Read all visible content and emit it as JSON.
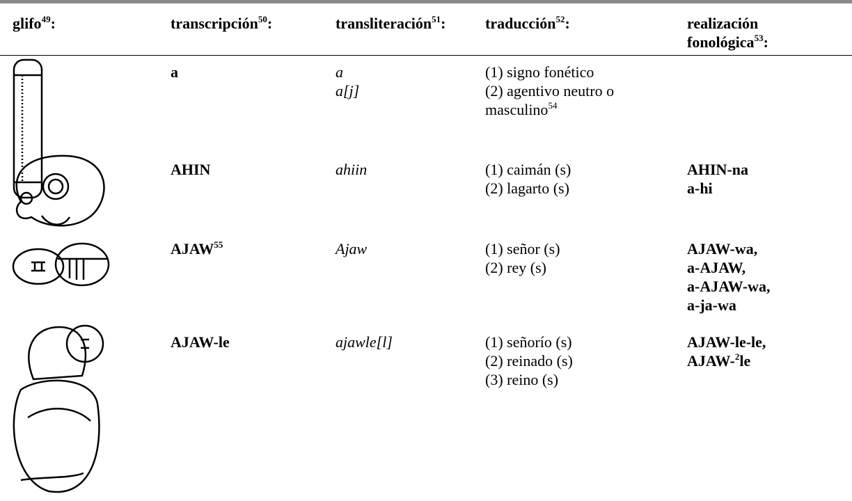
{
  "table": {
    "headers": [
      {
        "text": "glifo",
        "note": "49",
        "after": ":"
      },
      {
        "text": "transcripción",
        "note": "50",
        "after": ":"
      },
      {
        "text": "transliteración",
        "note": "51",
        "after": ":"
      },
      {
        "text": "traducción",
        "note": "52",
        "after": ":"
      },
      {
        "text": "realización fonológica",
        "note": "53",
        "after": ":"
      }
    ],
    "rows": [
      {
        "transcription": {
          "text": "a"
        },
        "transliteration": [
          "a",
          "a[j]"
        ],
        "translation": [
          {
            "text": "(1) signo fonético"
          },
          {
            "text": "(2) agentivo neutro o masculino",
            "note": "54"
          }
        ],
        "realization": []
      },
      {
        "transcription": {
          "text": "AHIN"
        },
        "transliteration": [
          "ahiin"
        ],
        "translation": [
          {
            "text": "(1) caimán (s)"
          },
          {
            "text": "(2) lagarto (s)"
          }
        ],
        "realization": [
          {
            "text": "AHIN-na"
          },
          {
            "text": "a-hi"
          }
        ]
      },
      {
        "transcription": {
          "text": "AJAW",
          "note": "55"
        },
        "transliteration": [
          "Ajaw"
        ],
        "translation": [
          {
            "text": "(1) señor (s)"
          },
          {
            "text": "(2) rey (s)"
          }
        ],
        "realization": [
          {
            "text": "AJAW-wa,"
          },
          {
            "text": "a-AJAW,"
          },
          {
            "text": "a-AJAW-wa,"
          },
          {
            "text": "a-ja-wa"
          }
        ]
      },
      {
        "transcription": {
          "text": "AJAW-le"
        },
        "transliteration": [
          "ajawle[l]"
        ],
        "translation": [
          {
            "text": "(1) señorío (s)"
          },
          {
            "text": "(2) reinado (s)"
          },
          {
            "text": "(3) reino (s)"
          }
        ],
        "realization": [
          {
            "text": "AJAW-le-le,"
          },
          {
            "text": "AJAW-",
            "note": "2",
            "after": "le"
          }
        ]
      }
    ]
  }
}
